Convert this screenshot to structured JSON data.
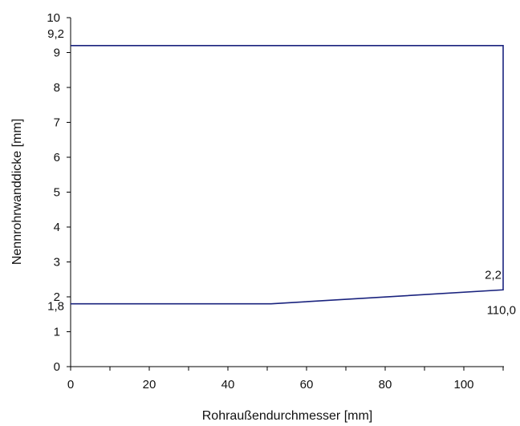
{
  "chart_data": {
    "type": "line",
    "title": "",
    "xlabel": "Rohraußendurchmesser [mm]",
    "ylabel": "Nennrohrwanddicke [mm]",
    "xlim": [
      0,
      110
    ],
    "ylim": [
      0,
      10
    ],
    "x_ticks": [
      0,
      20,
      40,
      60,
      80,
      100
    ],
    "x_tick_labels": [
      "0",
      "20",
      "40",
      "60",
      "80",
      "100"
    ],
    "y_ticks": [
      0,
      1,
      2,
      3,
      4,
      5,
      6,
      7,
      8,
      9,
      10
    ],
    "y_tick_labels": [
      "0",
      "1",
      "2",
      "3",
      "4",
      "5",
      "6",
      "7",
      "8",
      "9",
      "10"
    ],
    "grid": false,
    "legend": "none",
    "series": [
      {
        "color": "#1a237e",
        "x": [
          0,
          51,
          110,
          110,
          0
        ],
        "y": [
          1.8,
          1.8,
          2.2,
          9.2,
          9.2
        ]
      }
    ],
    "annotations": [
      {
        "text": "9,2",
        "x": 0,
        "y": 9.2,
        "anchor": "above-left"
      },
      {
        "text": "1,8",
        "x": 0,
        "y": 1.8,
        "anchor": "below-left"
      },
      {
        "text": "2,2",
        "x": 110,
        "y": 2.2,
        "anchor": "above-left"
      },
      {
        "text": "110,0",
        "x": 110,
        "y": 2.2,
        "anchor": "below-right"
      }
    ]
  }
}
